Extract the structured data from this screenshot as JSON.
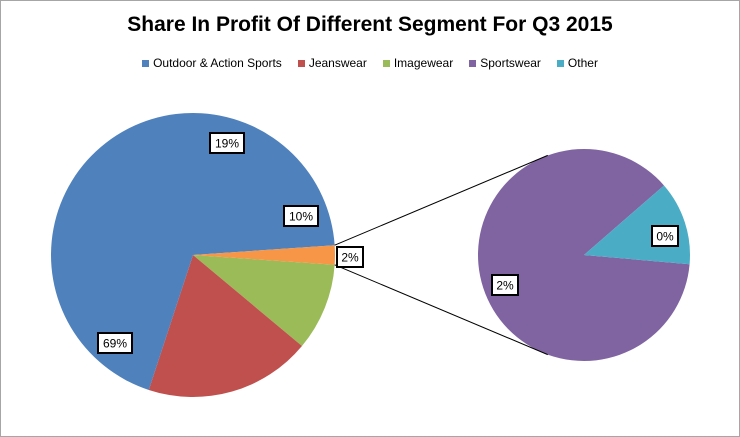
{
  "chart_data": {
    "type": "pie",
    "variant": "pie-of-pie",
    "title": "Share In Profit Of Different Segment For Q3 2015",
    "legend_position": "top",
    "series": [
      {
        "name": "Outdoor & Action Sports",
        "value": 69,
        "label": "69%",
        "color": "#4f81bd",
        "group": "main"
      },
      {
        "name": "Jeanswear",
        "value": 19,
        "label": "19%",
        "color": "#c0504d",
        "group": "main"
      },
      {
        "name": "Imagewear",
        "value": 10,
        "label": "10%",
        "color": "#9bbb59",
        "group": "main"
      },
      {
        "name": "Sportswear",
        "value": 2,
        "label": "2%",
        "color": "#8064a2",
        "group": "secondary"
      },
      {
        "name": "Other",
        "value": 0.2,
        "label": "0%",
        "color": "#4bacc6",
        "group": "secondary"
      }
    ],
    "aggregate_label": "2%",
    "aggregate_color": "#f79646"
  }
}
